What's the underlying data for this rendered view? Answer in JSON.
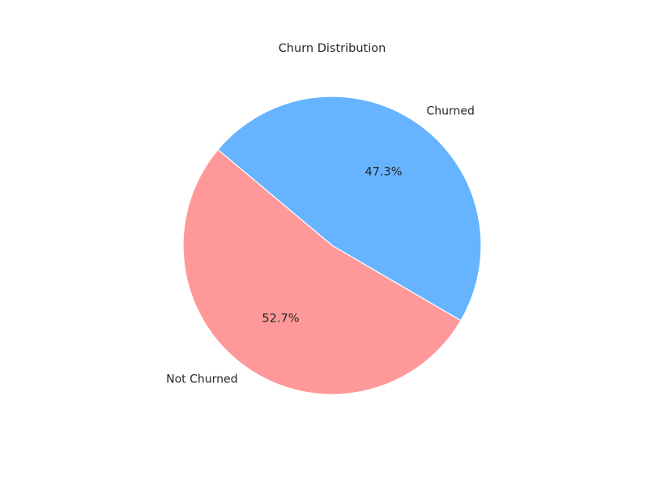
{
  "chart_data": {
    "type": "pie",
    "title": "Churn Distribution",
    "slices": [
      {
        "label": "Churned",
        "value": 47.3,
        "pct_label": "47.3%",
        "color": "#66b3ff"
      },
      {
        "label": "Not Churned",
        "value": 52.7,
        "pct_label": "52.7%",
        "color": "#ff9999"
      }
    ],
    "start_angle_deg": 140,
    "direction": "clockwise",
    "edge_color": "#ffffff"
  }
}
